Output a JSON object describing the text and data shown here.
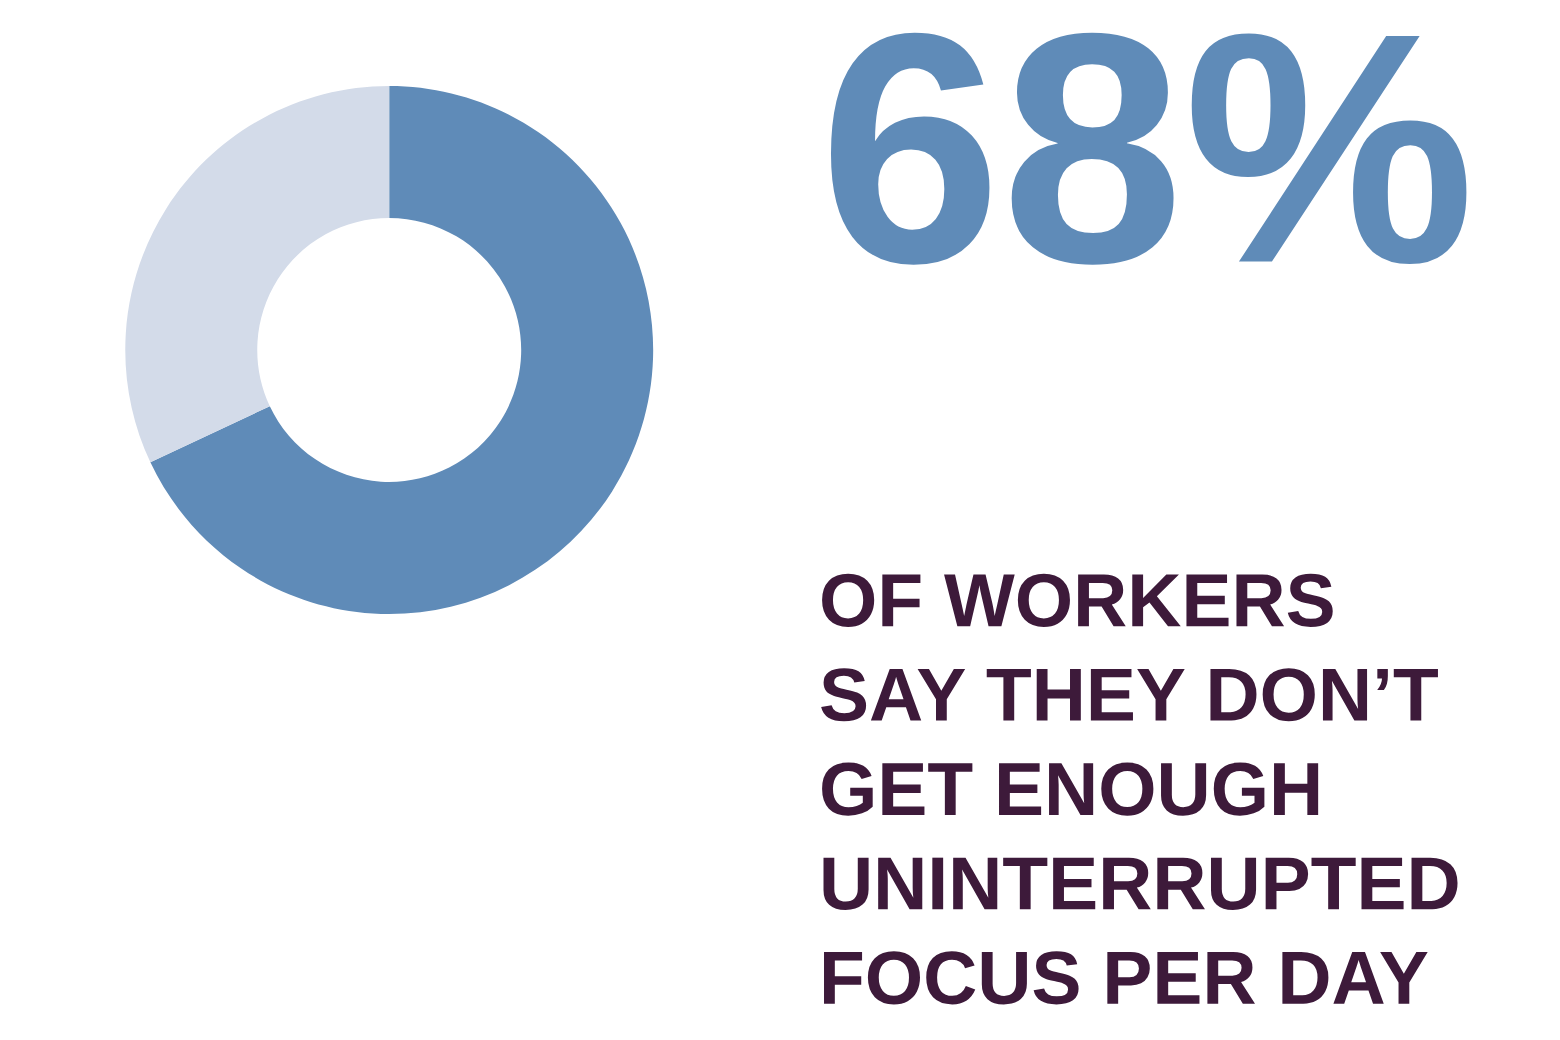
{
  "chart_data": {
    "type": "donut",
    "title": "68%",
    "subtitle": "OF WORKERS\nSAY THEY DON’T\nGET ENOUGH\nUNINTERRUPTED\nFOCUS PER DAY",
    "categories": [
      null,
      null
    ],
    "values": [
      68,
      32
    ],
    "colors": [
      "#5f8bb8",
      "#d3dbe9"
    ],
    "legend": false
  }
}
